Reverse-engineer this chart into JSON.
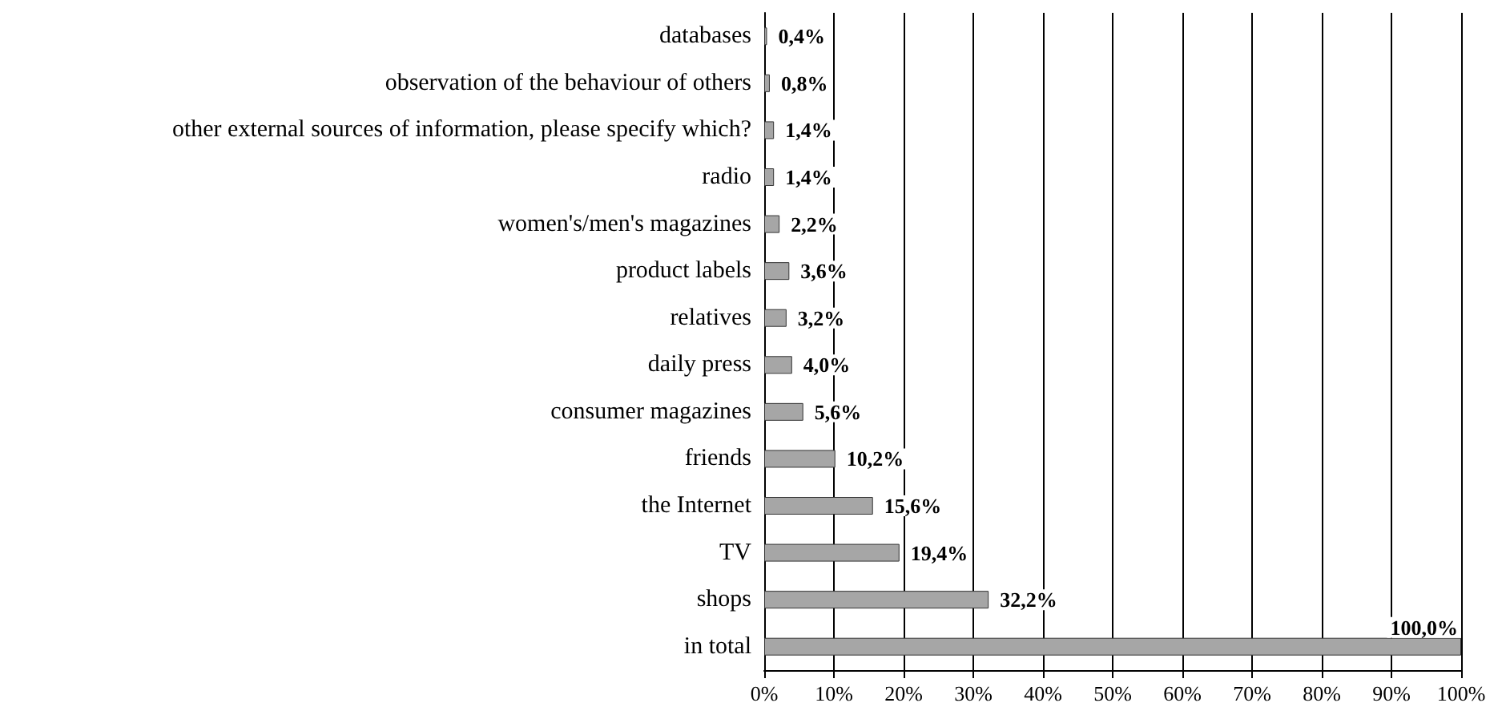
{
  "chart_data": {
    "type": "bar",
    "orientation": "horizontal",
    "categories": [
      "databases",
      "observation of the behaviour of others",
      "other external sources of information, please specify which?",
      "radio",
      "women's/men's magazines",
      "product labels",
      "relatives",
      "daily press",
      "consumer magazines",
      "friends",
      "the Internet",
      "TV",
      "shops",
      "in total"
    ],
    "values": [
      0.4,
      0.8,
      1.4,
      1.4,
      2.2,
      3.6,
      3.2,
      4.0,
      5.6,
      10.2,
      15.6,
      19.4,
      32.2,
      100
    ],
    "value_labels": [
      "0,4%",
      "0,8%",
      "1,4%",
      "1,4%",
      "2,2%",
      "3,6%",
      "3,2%",
      "4,0%",
      "5,6%",
      "10,2%",
      "15,6%",
      "19,4%",
      "32,2%",
      "100,0%"
    ],
    "color": "#a6a6a6",
    "xlim": [
      0,
      100
    ],
    "xticks": [
      {
        "value": 0,
        "label": "0%"
      },
      {
        "value": 10,
        "label": "10%"
      },
      {
        "value": 20,
        "label": "20%"
      },
      {
        "value": 30,
        "label": "30%"
      },
      {
        "value": 40,
        "label": "40%"
      },
      {
        "value": 50,
        "label": "50%"
      },
      {
        "value": 60,
        "label": "60%"
      },
      {
        "value": 70,
        "label": "70%"
      },
      {
        "value": 80,
        "label": "80%"
      },
      {
        "value": 90,
        "label": "90%"
      },
      {
        "value": 100,
        "label": "100%"
      }
    ],
    "grid": "x"
  }
}
